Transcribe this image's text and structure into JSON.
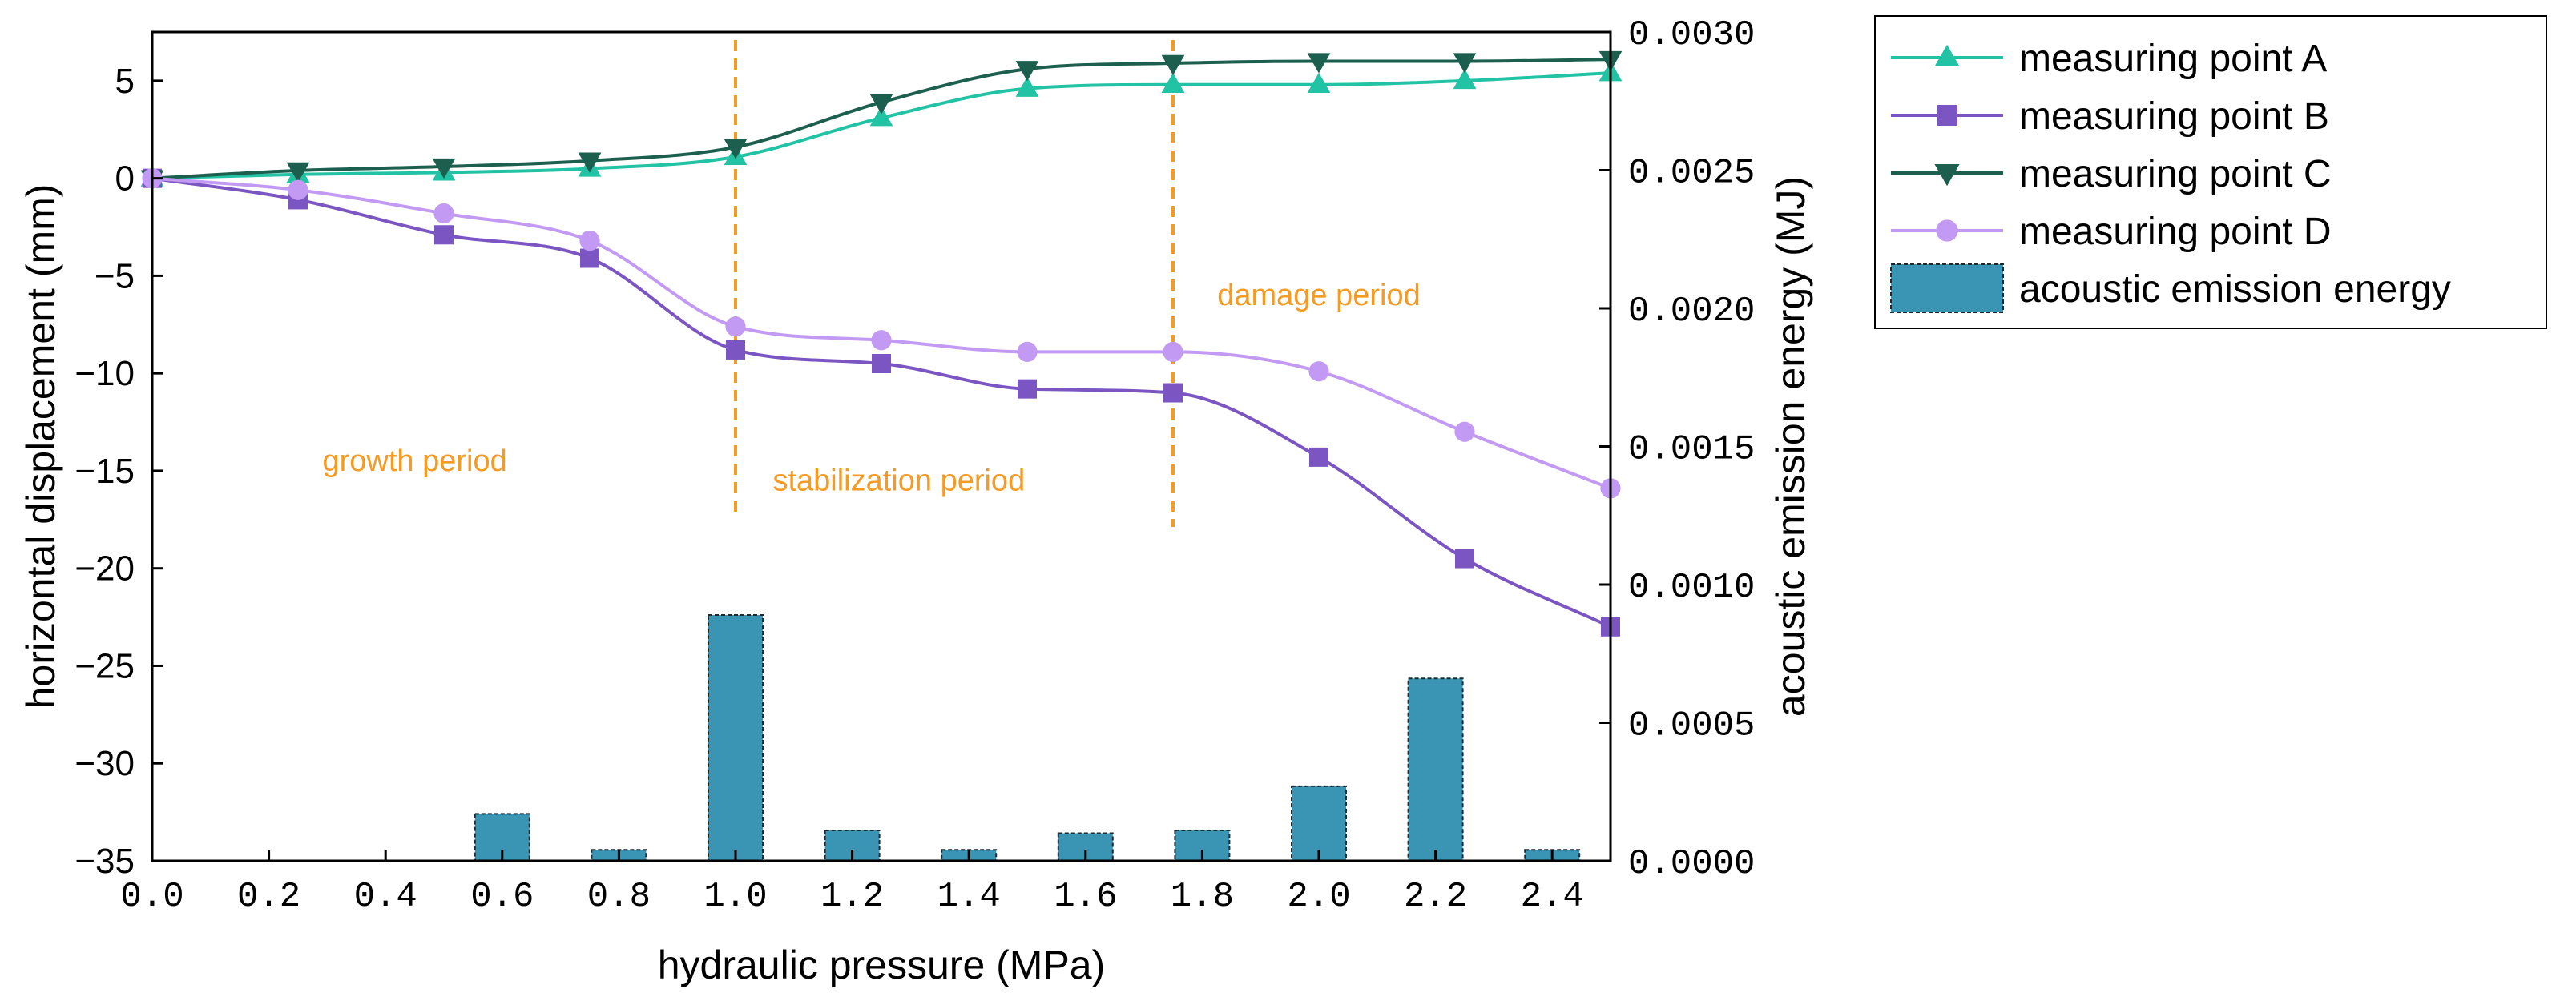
{
  "chart_data": {
    "type": "line",
    "xlabel": "hydraulic pressure (MPa)",
    "ylabel": "horizontal displacement (mm)",
    "y2label": "acoustic emission energy (MJ)",
    "xlim": [
      0,
      2.5
    ],
    "ylim": [
      -35,
      7.5
    ],
    "y2lim": [
      0,
      0.003
    ],
    "x_ticks": [
      "0.0",
      "0.2",
      "0.4",
      "0.6",
      "0.8",
      "1.0",
      "1.2",
      "1.4",
      "1.6",
      "1.8",
      "2.0",
      "2.2",
      "2.4"
    ],
    "y_ticks": [
      "5",
      "0",
      "−5",
      "−10",
      "−15",
      "−20",
      "−25",
      "−30",
      "−35"
    ],
    "y2_ticks": [
      "0.0030",
      "0.0025",
      "0.0020",
      "0.0015",
      "0.0010",
      "0.0005",
      "0.0000"
    ],
    "x": [
      0,
      0.25,
      0.5,
      0.75,
      1.0,
      1.25,
      1.5,
      1.75,
      2.0,
      2.25,
      2.5
    ],
    "series": [
      {
        "name": "measuring point A",
        "marker": "triangle-up",
        "color": "#22c3a5",
        "values": [
          0,
          0.2,
          0.3,
          0.5,
          1.1,
          3.1,
          4.6,
          4.8,
          4.8,
          5.0,
          5.4
        ]
      },
      {
        "name": "measuring point B",
        "marker": "square",
        "color": "#7b55c2",
        "values": [
          0,
          -1.1,
          -2.9,
          -4.1,
          -8.8,
          -9.5,
          -10.8,
          -11.0,
          -14.3,
          -19.5,
          -23.0
        ]
      },
      {
        "name": "measuring point C",
        "marker": "triangle-down",
        "color": "#1d5f4e",
        "values": [
          0,
          0.4,
          0.6,
          0.9,
          1.6,
          3.9,
          5.6,
          5.9,
          6.0,
          6.0,
          6.1
        ]
      },
      {
        "name": "measuring point D",
        "marker": "circle",
        "color": "#c39af3",
        "values": [
          0,
          -0.6,
          -1.8,
          -3.2,
          -7.6,
          -8.3,
          -8.9,
          -8.9,
          -9.9,
          -13.0,
          -15.9
        ]
      }
    ],
    "bars": {
      "name": "acoustic emission energy",
      "color": "#3a95b5",
      "x": [
        0.6,
        0.8,
        1.0,
        1.2,
        1.4,
        1.6,
        1.8,
        2.0,
        2.2,
        2.4
      ],
      "values": [
        0.00017,
        4e-05,
        0.00089,
        0.00011,
        4e-05,
        0.0001,
        0.00011,
        0.00027,
        0.00066,
        4e-05
      ]
    },
    "vlines": [
      1.0,
      1.75
    ],
    "vline_color": "#f59a23",
    "annotations": [
      {
        "text": "growth period",
        "x": 0.45,
        "y": -15
      },
      {
        "text": "stabilization period",
        "x": 1.28,
        "y": -16
      },
      {
        "text": "damage period",
        "x": 2.0,
        "y": -6.5
      }
    ],
    "legend_position": "outside-right-top"
  }
}
